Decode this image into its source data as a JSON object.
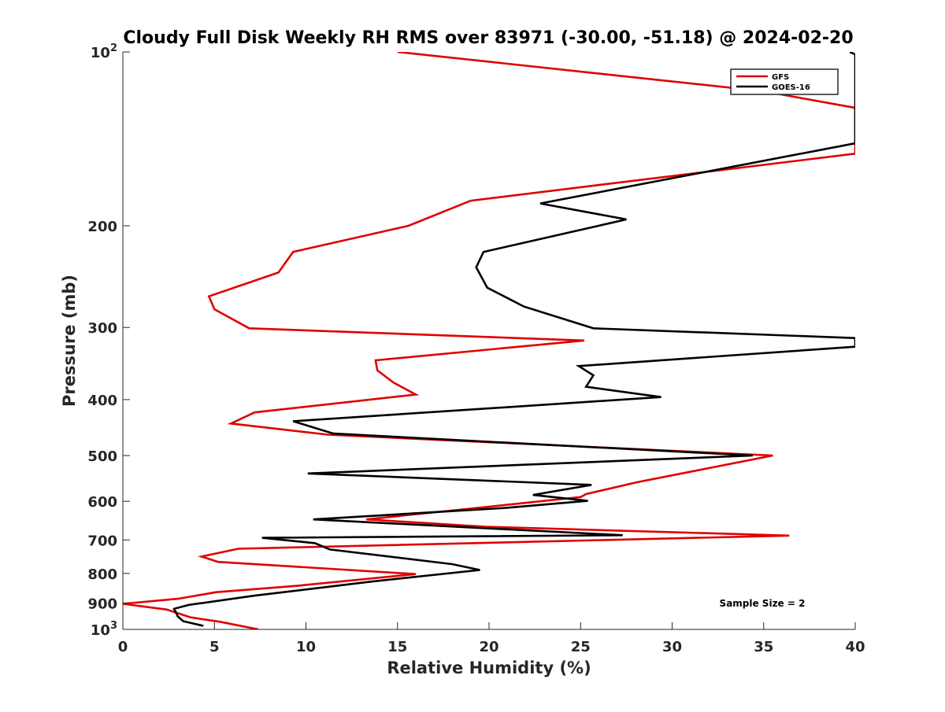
{
  "chart_data": {
    "type": "line",
    "title": "Cloudy Full Disk Weekly RH RMS over 83971 (-30.00, -51.18) @ 2024-02-20",
    "xlabel": "Relative Humidity (%)",
    "ylabel": "Pressure (mb)",
    "xlim": [
      0,
      40
    ],
    "ylim": [
      100,
      1000
    ],
    "y_scale": "log",
    "y_reversed": true,
    "grid": false,
    "legend_position": "top-right",
    "x_ticks": [
      "0",
      "5",
      "10",
      "15",
      "20",
      "25",
      "30",
      "35",
      "40"
    ],
    "y_ticks": [
      {
        "value": 100,
        "base": "10",
        "exp": "2"
      },
      {
        "value": 200,
        "label": "200"
      },
      {
        "value": 300,
        "label": "300"
      },
      {
        "value": 400,
        "label": "400"
      },
      {
        "value": 500,
        "label": "500"
      },
      {
        "value": 600,
        "label": "600"
      },
      {
        "value": 700,
        "label": "700"
      },
      {
        "value": 800,
        "label": "800"
      },
      {
        "value": 900,
        "label": "900"
      },
      {
        "value": 1000,
        "base": "10",
        "exp": "3"
      }
    ],
    "annotation": "Sample Size = 2",
    "series": [
      {
        "name": "GFS",
        "color": "#e00000",
        "points": [
          [
            15.0,
            100
          ],
          [
            35.0,
            117
          ],
          [
            40.0,
            125
          ],
          [
            40.0,
            150
          ],
          [
            19.0,
            181
          ],
          [
            15.6,
            200
          ],
          [
            9.3,
            222
          ],
          [
            8.5,
            241
          ],
          [
            4.7,
            265
          ],
          [
            5.0,
            279
          ],
          [
            6.9,
            301
          ],
          [
            25.2,
            316
          ],
          [
            13.8,
            342
          ],
          [
            13.9,
            356
          ],
          [
            14.8,
            374
          ],
          [
            16.0,
            392
          ],
          [
            7.2,
            421
          ],
          [
            5.9,
            440
          ],
          [
            11.2,
            460
          ],
          [
            35.5,
            500
          ],
          [
            28.1,
            556
          ],
          [
            25.3,
            583
          ],
          [
            25.0,
            590
          ],
          [
            20.0,
            613
          ],
          [
            13.3,
            645
          ],
          [
            19.8,
            664
          ],
          [
            36.4,
            688
          ],
          [
            6.3,
            725
          ],
          [
            4.3,
            748
          ],
          [
            5.2,
            764
          ],
          [
            16.0,
            802
          ],
          [
            9.6,
            840
          ],
          [
            5.1,
            862
          ],
          [
            3.0,
            885
          ],
          [
            0.0,
            903
          ],
          [
            2.4,
            924
          ],
          [
            3.7,
            953
          ],
          [
            5.3,
            970
          ],
          [
            7.4,
            1000
          ]
        ]
      },
      {
        "name": "GOES-16",
        "color": "#000000",
        "points": [
          [
            39.7,
            100
          ],
          [
            40.0,
            101
          ],
          [
            40.0,
            144
          ],
          [
            38.5,
            147
          ],
          [
            22.8,
            183
          ],
          [
            27.5,
            195
          ],
          [
            19.7,
            222
          ],
          [
            19.3,
            236
          ],
          [
            19.9,
            256
          ],
          [
            21.9,
            276
          ],
          [
            25.7,
            301
          ],
          [
            40.0,
            313
          ],
          [
            40.0,
            324
          ],
          [
            24.9,
            350
          ],
          [
            25.7,
            363
          ],
          [
            25.3,
            380
          ],
          [
            29.4,
            396
          ],
          [
            9.3,
            436
          ],
          [
            11.5,
            458
          ],
          [
            34.4,
            500
          ],
          [
            10.1,
            537
          ],
          [
            25.6,
            562
          ],
          [
            22.4,
            585
          ],
          [
            25.4,
            599
          ],
          [
            20.9,
            616
          ],
          [
            10.4,
            645
          ],
          [
            27.3,
            687
          ],
          [
            7.6,
            694
          ],
          [
            10.5,
            709
          ],
          [
            11.3,
            727
          ],
          [
            18.0,
            771
          ],
          [
            19.5,
            789
          ],
          [
            13.5,
            827
          ],
          [
            7.2,
            874
          ],
          [
            3.6,
            907
          ],
          [
            2.8,
            921
          ],
          [
            3.0,
            950
          ],
          [
            3.3,
            968
          ],
          [
            4.4,
            986
          ]
        ]
      }
    ]
  }
}
